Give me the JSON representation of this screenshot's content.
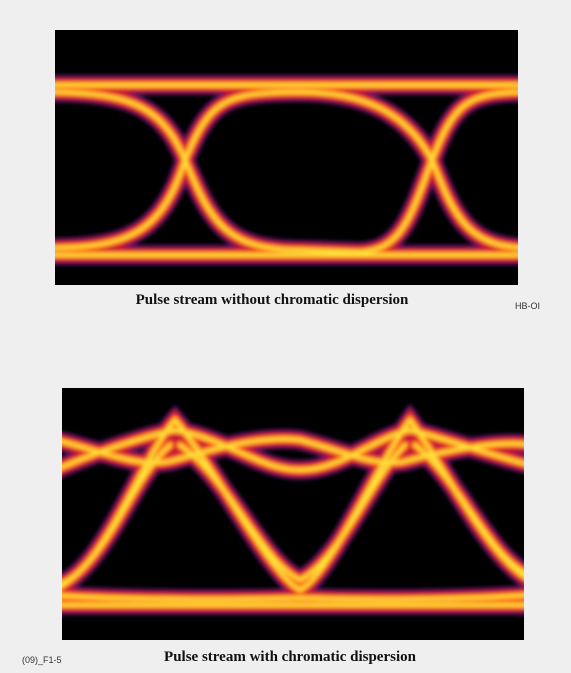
{
  "figure": {
    "top": {
      "caption": "Pulse stream without chromatic dispersion",
      "tag": "HB-OI"
    },
    "bottom": {
      "caption": "Pulse stream with chromatic dispersion",
      "tag": "(09)_F1-5"
    }
  }
}
